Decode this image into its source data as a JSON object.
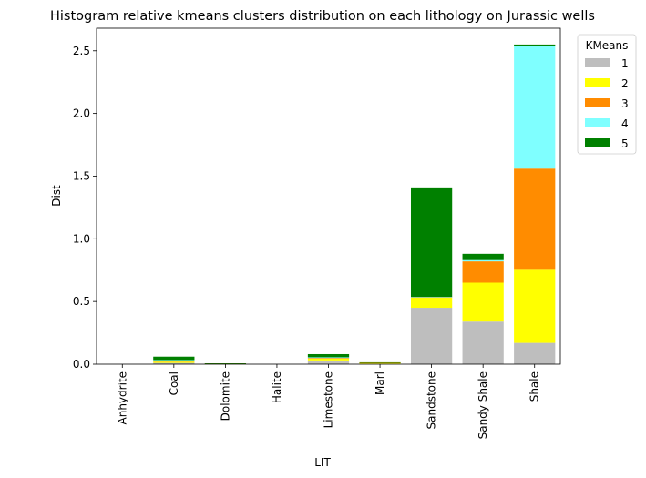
{
  "chart_data": {
    "type": "bar",
    "stacked": true,
    "title": "Histogram relative kmeans clusters distribution on each lithology on Jurassic wells",
    "xlabel": "LIT",
    "ylabel": "Dist",
    "ylim": [
      0,
      2.68
    ],
    "yticks": [
      "0.0",
      "0.5",
      "1.0",
      "1.5",
      "2.0",
      "2.5"
    ],
    "grid": false,
    "legend": {
      "title": "KMeans",
      "placement": "outside-top-right"
    },
    "categories": [
      "Anhydrite",
      "Coal",
      "Dolomite",
      "Halite",
      "Limestone",
      "Marl",
      "Sandstone",
      "Sandy Shale",
      "Shale"
    ],
    "series": [
      {
        "name": "1",
        "color": "#bebebe",
        "values": [
          0,
          0.01,
          0.003,
          0,
          0.03,
          0.004,
          0.45,
          0.34,
          0.17
        ]
      },
      {
        "name": "2",
        "color": "#ffff00",
        "values": [
          0,
          0.01,
          0.001,
          0,
          0.015,
          0.006,
          0.08,
          0.31,
          0.59
        ]
      },
      {
        "name": "3",
        "color": "#ff8c00",
        "values": [
          0,
          0.01,
          0.001,
          0,
          0.005,
          0.002,
          0.005,
          0.17,
          0.8
        ]
      },
      {
        "name": "4",
        "color": "#7fffff",
        "values": [
          0,
          0.003,
          0,
          0,
          0.005,
          0,
          0.002,
          0.01,
          0.98
        ]
      },
      {
        "name": "5",
        "color": "#008000",
        "values": [
          0,
          0.027,
          0.002,
          0,
          0.025,
          0.003,
          0.873,
          0.05,
          0.01
        ]
      }
    ]
  }
}
